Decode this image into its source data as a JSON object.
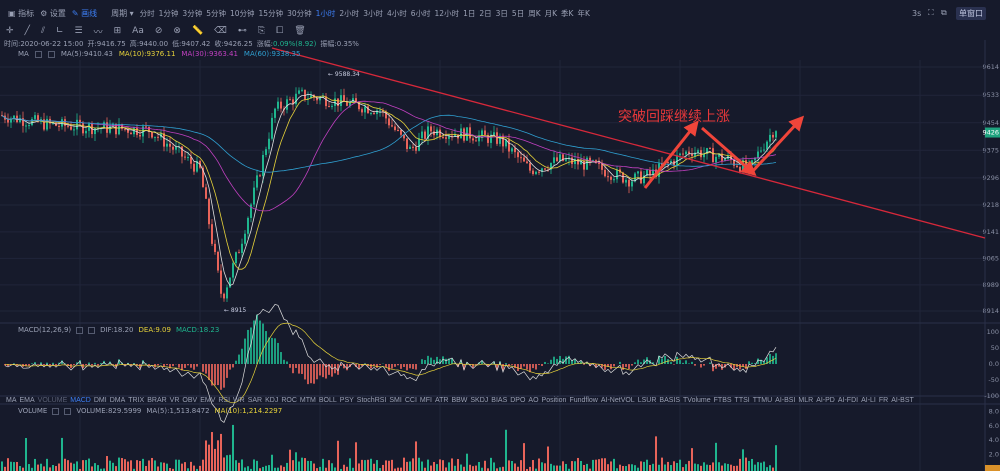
{
  "toolbar": {
    "indicator": "指标",
    "settings": "设置",
    "draw": "画线",
    "period": "周期",
    "periods": [
      "分时",
      "1分钟",
      "3分钟",
      "5分钟",
      "10分钟",
      "15分钟",
      "30分钟",
      "1小时",
      "2小时",
      "3小时",
      "4小时",
      "6小时",
      "12小时",
      "1日",
      "2日",
      "3日",
      "5日",
      "周K",
      "月K",
      "季K",
      "年K"
    ],
    "selected_period": "1小时",
    "refresh": "3s",
    "single_window": "单窗口"
  },
  "draw_tools": [
    "crosshair",
    "line",
    "parallel",
    "angle",
    "horizontal",
    "wave",
    "grid",
    "Aa",
    "magnet",
    "lock",
    "ruler",
    "eraser",
    "ruler2",
    "copy",
    "screenshot",
    "trash"
  ],
  "info": {
    "time": "时间:2020-06-22 15:00",
    "open": "开:9416.75",
    "high": "高:9440.00",
    "low": "低:9407.42",
    "close": "收:9426.25",
    "change_label": "涨幅:",
    "change": "0.09%(8.92)",
    "amplitude": "振幅:0.35%"
  },
  "ma": {
    "label": "MA",
    "ma5": "MA(5):9410.43",
    "ma10": "MA(10):9376.11",
    "ma30": "MA(30):9363.41",
    "ma60": "MA(60):9338.35"
  },
  "price_axis": {
    "ticks": [
      9614,
      9533,
      9454,
      9375,
      9296,
      9218,
      9141,
      9065,
      8989,
      8914
    ],
    "current": "9426",
    "high_label": "9588.34",
    "low_label": "8915"
  },
  "annotation": {
    "text": "突破回踩继续上涨",
    "color": "#e8383a"
  },
  "price_path": [
    [
      0,
      9476
    ],
    [
      50,
      9448
    ],
    [
      100,
      9440
    ],
    [
      150,
      9433
    ],
    [
      200,
      9318
    ],
    [
      222,
      8950
    ],
    [
      240,
      9100
    ],
    [
      260,
      9318
    ],
    [
      275,
      9491
    ],
    [
      300,
      9534
    ],
    [
      330,
      9520
    ],
    [
      380,
      9491
    ],
    [
      410,
      9376
    ],
    [
      430,
      9433
    ],
    [
      470,
      9420
    ],
    [
      500,
      9405
    ],
    [
      530,
      9318
    ],
    [
      560,
      9347
    ],
    [
      590,
      9333
    ],
    [
      630,
      9290
    ],
    [
      650,
      9304
    ],
    [
      690,
      9376
    ],
    [
      710,
      9362
    ],
    [
      730,
      9347
    ],
    [
      750,
      9318
    ],
    [
      760,
      9376
    ],
    [
      775,
      9440
    ]
  ],
  "macd": {
    "label": "MACD(12,26,9)",
    "dif": "DIF:18.20",
    "dea": "DEA:9.09",
    "macd": "MACD:18.23",
    "ticks": [
      "100",
      "50",
      "0.0",
      "-50",
      "-100"
    ]
  },
  "indicator_tabs": [
    "MA",
    "EMA",
    "VOLUME",
    "MACD",
    "DMI",
    "DMA",
    "TRIX",
    "BRAR",
    "VR",
    "OBV",
    "EMV",
    "RSI",
    "WR",
    "SAR",
    "KDJ",
    "ROC",
    "MTM",
    "BOLL",
    "PSY",
    "StochRSI",
    "SMI",
    "CCI",
    "MFI",
    "ATR",
    "BBW",
    "SKDJ",
    "BIAS",
    "DPO",
    "AO",
    "Position",
    "Fundflow",
    "AI-NetVOL",
    "LSUR",
    "BASIS",
    "TVolume",
    "FTBS",
    "TTSI",
    "TTMU",
    "AI-BSI",
    "MLR",
    "AI-PD",
    "AI-FDI",
    "AI-LI",
    "FR",
    "AI-BST"
  ],
  "selected_tab": "MACD",
  "volume": {
    "label": "VOLUME",
    "volume": "VOLUME:829.5999",
    "ma5": "MA(5):1,513.8472",
    "ma10": "MA(10):1,214.2297",
    "ticks": [
      "8.0",
      "6.0",
      "4.0",
      "2.0"
    ]
  },
  "colors": {
    "up": "#1fb58e",
    "down": "#e8645a",
    "ma5": "#e0e0e0",
    "ma10": "#e6d23a",
    "ma30": "#c040c0",
    "ma60": "#2f9fd0",
    "trend": "#d6283a"
  }
}
